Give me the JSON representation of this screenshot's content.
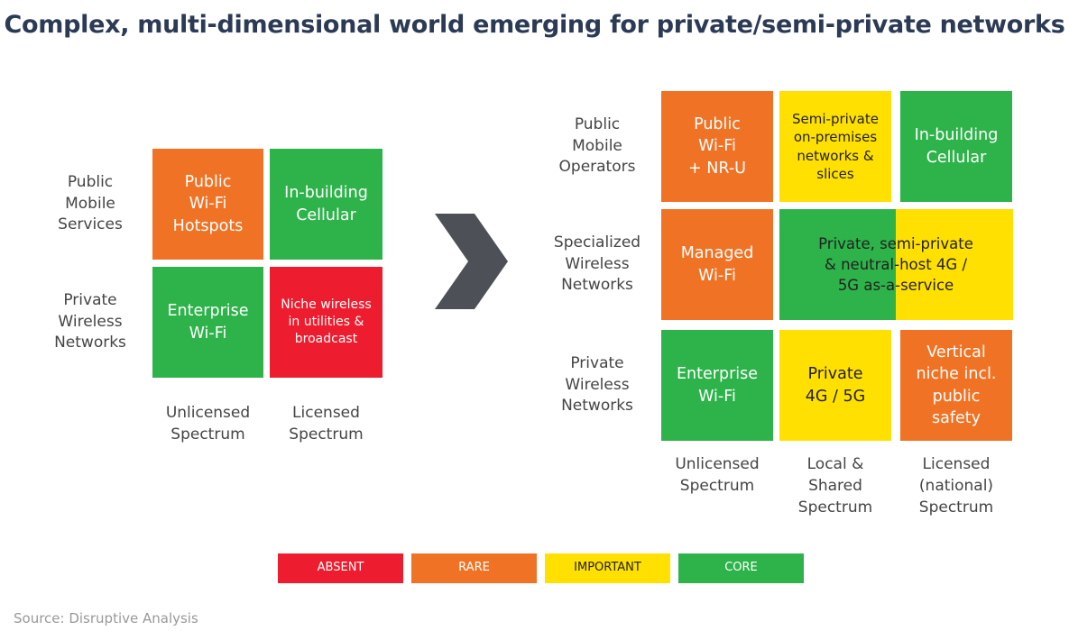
{
  "title": "Complex, multi-dimensional world emerging for private/semi-private networks",
  "left": {
    "row_labels": [
      "Public\nMobile\nServices",
      "Private\nWireless\nNetworks"
    ],
    "col_labels": [
      "Unlicensed\nSpectrum",
      "Licensed\nSpectrum"
    ],
    "cells": [
      [
        {
          "text": "Public\nWi-Fi\nHotspots",
          "color": "#f07325"
        },
        {
          "text": "In-building\nCellular",
          "color": "#2db34a"
        }
      ],
      [
        {
          "text": "Enterprise\nWi-Fi",
          "color": "#2db34a"
        },
        {
          "text": "Niche wireless\nin utilities &\nbroadcast",
          "color": "#ed1c2e"
        }
      ]
    ]
  },
  "right": {
    "row_labels": [
      "Public\nMobile\nOperators",
      "Specialized\nWireless\nNetworks",
      "Private\nWireless\nNetworks"
    ],
    "col_labels": [
      "Unlicensed\nSpectrum",
      "Local &\nShared\nSpectrum",
      "Licensed\n(national)\nSpectrum"
    ],
    "cells": [
      [
        {
          "text": "Public\nWi-Fi\n+ NR-U",
          "color": "#f07325"
        },
        {
          "text": "Semi-private\non-premises\nnetworks &\nslices",
          "color": "#ffe000"
        },
        {
          "text": "In-building\nCellular",
          "color": "#2db34a"
        }
      ],
      [
        {
          "text": "Managed\nWi-Fi",
          "color": "#f07325"
        },
        {
          "text": "Private, semi-private\n& neutral-host 4G /\n5G as-a-service",
          "colors": [
            "#2db34a",
            "#ffe000"
          ]
        }
      ],
      [
        {
          "text": "Enterprise\nWi-Fi",
          "color": "#2db34a"
        },
        {
          "text": "Private\n4G / 5G",
          "color": "#ffe000"
        },
        {
          "text": "Vertical\nniche incl.\npublic\nsafety",
          "color": "#f07325"
        }
      ]
    ]
  },
  "legend": [
    {
      "label": "ABSENT",
      "color": "#ed1c2e"
    },
    {
      "label": "RARE",
      "color": "#f07325"
    },
    {
      "label": "IMPORTANT",
      "color": "#ffe000"
    },
    {
      "label": "CORE",
      "color": "#2db34a"
    }
  ],
  "source": "Source: Disruptive Analysis"
}
